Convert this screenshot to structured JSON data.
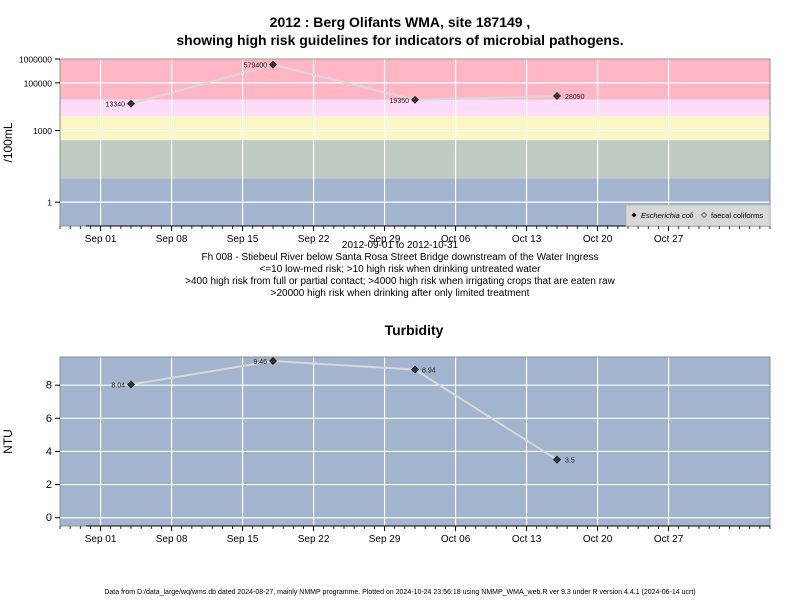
{
  "header": {
    "title_line1": "2012 : Berg Olifants WMA, site 187149 ,",
    "title_line2": "showing high risk guidelines for indicators of microbial pathogens."
  },
  "captions": {
    "date_range": "2012-09-01 to 2012-10-31",
    "site_description": "Fh 008 - Stiebeul River below Santa Rosa Street Bridge downstream of the Water Ingress",
    "guideline_1": "<=10 low-med risk; >10 high risk when drinking untreated water",
    "guideline_2": ">400 high risk from full or partial contact; >4000 high risk when irrigating crops that are eaten raw",
    "guideline_3": ">20000 high risk when drinking after only limited treatment"
  },
  "footer": {
    "text": "Data from D:/data_large/wq/wms.db dated 2024-08-27, mainly NMMP programme. Plotted on 2024-10-24 23:56:18 using NMMP_WMA_web.R ver 9.3 under R version 4.4.1 (2024-06-14 ucrt)"
  },
  "colors": {
    "band_low": "#a2b4ce",
    "band_10_400": "#bfcbc0",
    "band_400_4000": "#fbf6c6",
    "band_4000_20000": "#fddcfa",
    "band_high": "#ffb6c4",
    "plot_bg_turbidity": "#a2b4ce",
    "line": "#d8d8d8",
    "grid": "#ffffff",
    "marker": "#333333"
  },
  "chart_data": [
    {
      "type": "line",
      "ylabel": "/100mL",
      "y_scale": "log10",
      "ylim": [
        0.1,
        1000000
      ],
      "xlim": [
        "2012-08-28",
        "2012-11-06"
      ],
      "x_ticks": [
        {
          "date": "2012-09-01",
          "label": "Sep 01"
        },
        {
          "date": "2012-09-08",
          "label": "Sep 08"
        },
        {
          "date": "2012-09-15",
          "label": "Sep 15"
        },
        {
          "date": "2012-09-22",
          "label": "Sep 22"
        },
        {
          "date": "2012-09-29",
          "label": "Sep 29"
        },
        {
          "date": "2012-10-06",
          "label": "Oct 06"
        },
        {
          "date": "2012-10-13",
          "label": "Oct 13"
        },
        {
          "date": "2012-10-20",
          "label": "Oct 20"
        },
        {
          "date": "2012-10-27",
          "label": "Oct 27"
        }
      ],
      "y_ticks": [
        {
          "value": 1,
          "label": "1"
        },
        {
          "value": 1000,
          "label": "1000"
        },
        {
          "value": 100000,
          "label": "100000"
        },
        {
          "value": 1000000,
          "label": "1000000"
        }
      ],
      "guideline_bands": [
        {
          "from": 0.1,
          "to": 10,
          "color": "#a2b4ce"
        },
        {
          "from": 10,
          "to": 400,
          "color": "#bfcbc0"
        },
        {
          "from": 400,
          "to": 4000,
          "color": "#fbf6c6"
        },
        {
          "from": 4000,
          "to": 20000,
          "color": "#fddcfa"
        },
        {
          "from": 20000,
          "to": 1000000,
          "color": "#ffb6c4"
        }
      ],
      "grid": true,
      "legend_position": "bottom-right",
      "legend": [
        {
          "label": "Escherichia coli",
          "marker": "filled-diamond",
          "italic": true
        },
        {
          "label": "faecal coliforms",
          "marker": "open-diamond",
          "italic": false
        }
      ],
      "series": [
        {
          "name": "Escherichia coli",
          "x": [
            "2012-09-04",
            "2012-09-18",
            "2012-10-02",
            "2012-10-16"
          ],
          "y": [
            13340,
            579400,
            19350,
            28090
          ],
          "labels": [
            "13340",
            "579400",
            "19350",
            "28090"
          ]
        }
      ]
    },
    {
      "type": "line",
      "title": "Turbidity",
      "ylabel": "NTU",
      "ylim": [
        -0.5,
        9.7
      ],
      "xlim": [
        "2012-08-28",
        "2012-11-06"
      ],
      "x_ticks": [
        {
          "date": "2012-09-01",
          "label": "Sep 01"
        },
        {
          "date": "2012-09-08",
          "label": "Sep 08"
        },
        {
          "date": "2012-09-15",
          "label": "Sep 15"
        },
        {
          "date": "2012-09-22",
          "label": "Sep 22"
        },
        {
          "date": "2012-09-29",
          "label": "Sep 29"
        },
        {
          "date": "2012-10-06",
          "label": "Oct 06"
        },
        {
          "date": "2012-10-13",
          "label": "Oct 13"
        },
        {
          "date": "2012-10-20",
          "label": "Oct 20"
        },
        {
          "date": "2012-10-27",
          "label": "Oct 27"
        }
      ],
      "y_ticks": [
        {
          "value": 0,
          "label": "0"
        },
        {
          "value": 2,
          "label": "2"
        },
        {
          "value": 4,
          "label": "4"
        },
        {
          "value": 6,
          "label": "6"
        },
        {
          "value": 8,
          "label": "8"
        }
      ],
      "grid": true,
      "series": [
        {
          "x": [
            "2012-09-04",
            "2012-09-18",
            "2012-10-02",
            "2012-10-16"
          ],
          "y": [
            8.04,
            9.46,
            8.94,
            3.5
          ],
          "labels": [
            "8.04",
            "9.46",
            "8.94",
            "3.5"
          ]
        }
      ]
    }
  ]
}
